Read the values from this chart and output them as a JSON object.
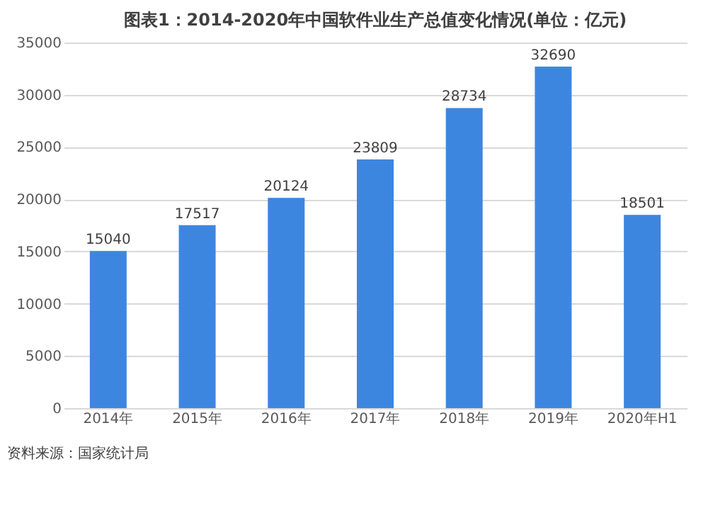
{
  "chart_data": {
    "type": "bar",
    "title": "图表1：2014-2020年中国软件业生产总值变化情况(单位：亿元)",
    "categories": [
      "2014年",
      "2015年",
      "2016年",
      "2017年",
      "2018年",
      "2019年",
      "2020年H1"
    ],
    "values": [
      15040,
      17517,
      20124,
      23809,
      28734,
      32690,
      18501
    ],
    "color": "#3d86e0",
    "ylim": [
      0,
      35000
    ],
    "yticks": [
      0,
      5000,
      10000,
      15000,
      20000,
      25000,
      30000,
      35000
    ],
    "grid": "y",
    "data_labels": true,
    "annotations": [
      "资料来源：国家统计局"
    ]
  }
}
